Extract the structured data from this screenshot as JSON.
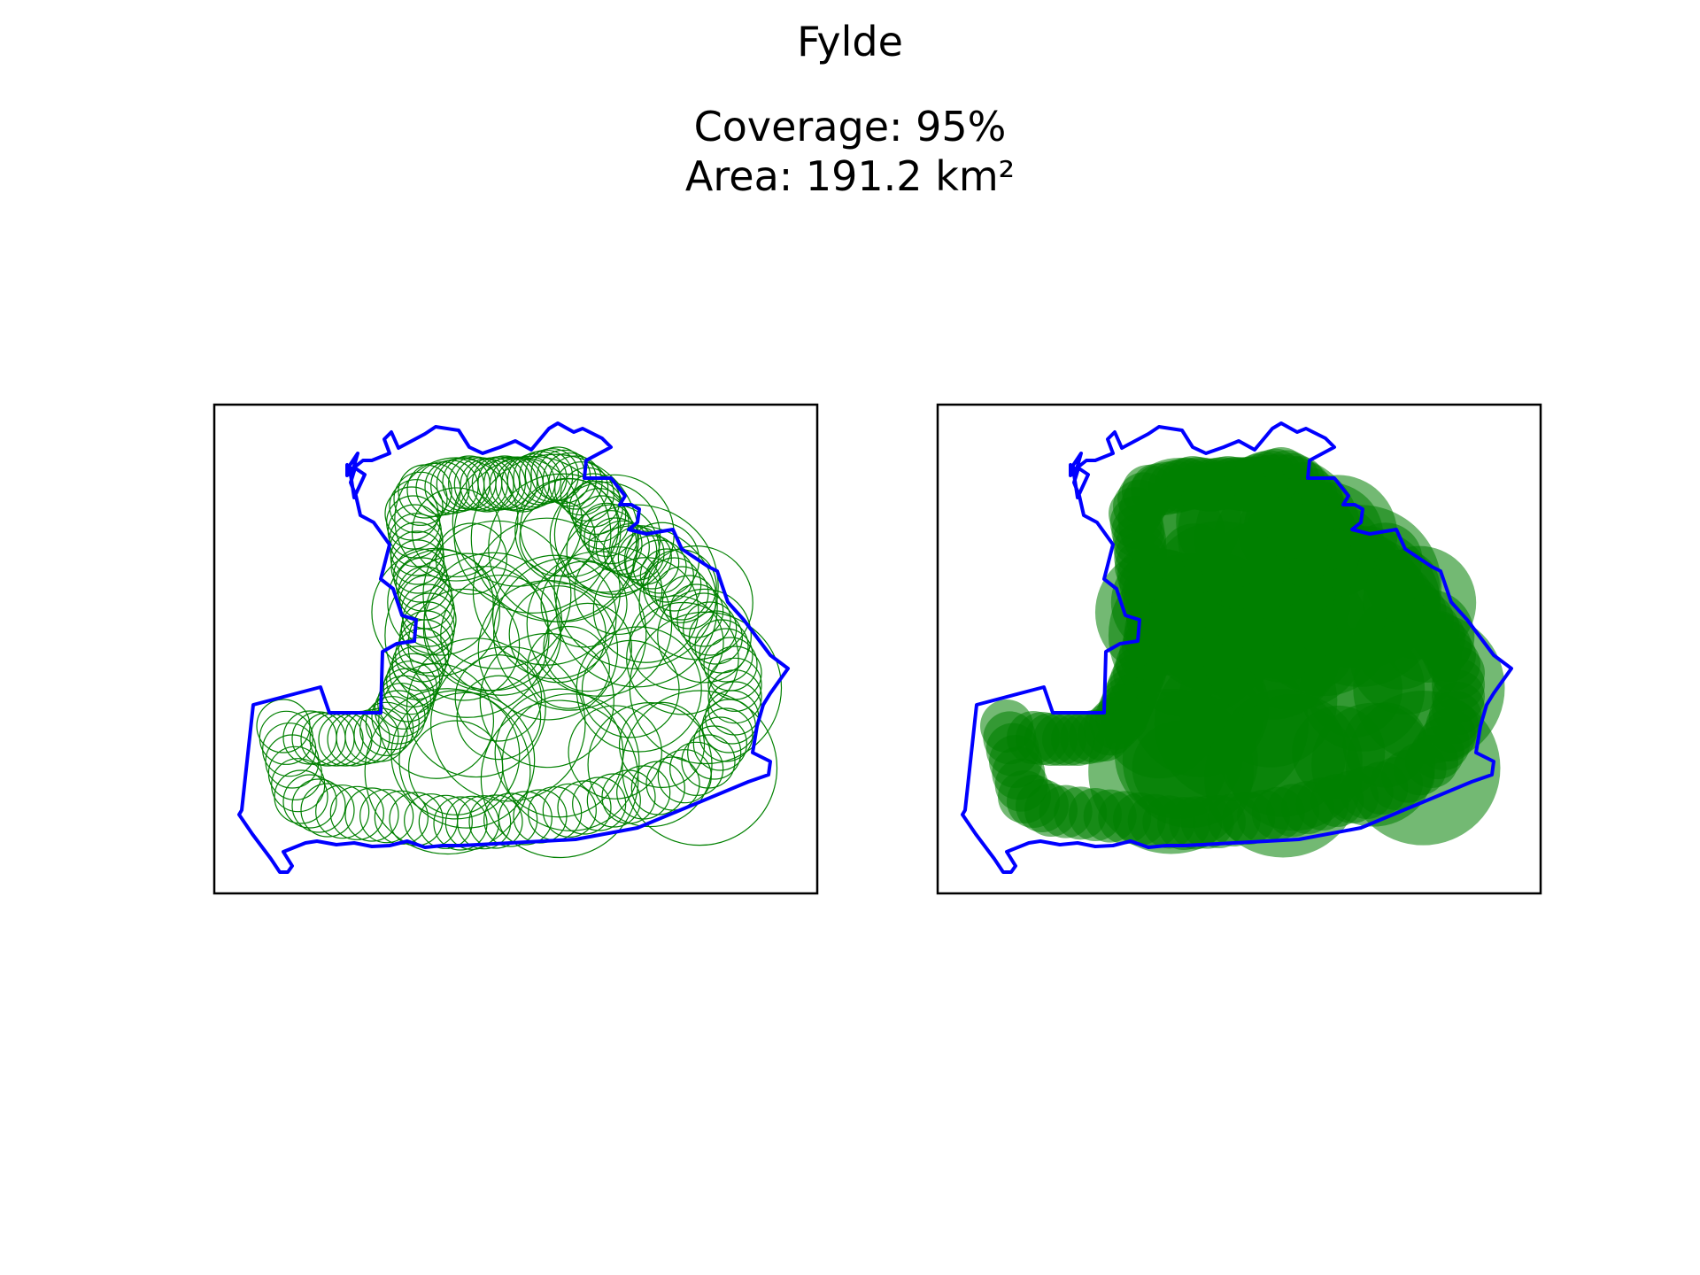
{
  "figure": {
    "title": "Fylde",
    "coverage_label": "Coverage: 95%",
    "area_label": "Area: 191.2 km²"
  },
  "colors": {
    "boundary": "#0000ff",
    "circles": "#008000",
    "axes_frame": "#000000",
    "background": "#ffffff"
  },
  "panels": [
    {
      "name": "circle-outlines",
      "style": "outline"
    },
    {
      "name": "circle-fills",
      "style": "filled"
    }
  ]
}
